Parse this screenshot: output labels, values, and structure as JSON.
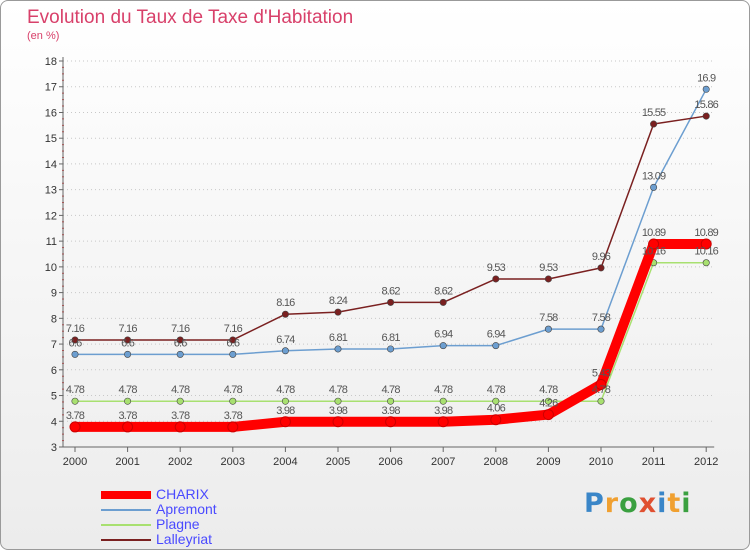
{
  "chart_data": {
    "type": "line",
    "title": "Evolution du Taux de Taxe d'Habitation",
    "subtitle": "(en %)",
    "categories": [
      "2000",
      "2001",
      "2002",
      "2003",
      "2004",
      "2005",
      "2006",
      "2007",
      "2008",
      "2009",
      "2010",
      "2011",
      "2012"
    ],
    "ylim": [
      3,
      18
    ],
    "y_ticks": [
      3,
      4,
      5,
      6,
      7,
      8,
      9,
      10,
      11,
      12,
      13,
      14,
      15,
      16,
      17,
      18
    ],
    "grid": "horizontal dotted",
    "legend_position": "bottom-left",
    "series": [
      {
        "name": "CHARIX",
        "color": "#ff0000",
        "values": [
          3.78,
          3.78,
          3.78,
          3.78,
          3.98,
          3.98,
          3.98,
          3.98,
          4.06,
          4.26,
          5.43,
          10.89,
          10.89
        ],
        "labels": [
          "3.78",
          "3.78",
          "3.78",
          "3.78",
          "3.98",
          "3.98",
          "3.98",
          "3.98",
          "4.06",
          "4.26",
          "5.43",
          "10.89",
          "10.89"
        ]
      },
      {
        "name": "Apremont",
        "color": "#6c9ed0",
        "values": [
          6.6,
          6.6,
          6.6,
          6.6,
          6.74,
          6.81,
          6.81,
          6.94,
          6.94,
          7.58,
          7.58,
          13.09,
          16.9
        ],
        "labels": [
          "6.6",
          "6.6",
          "6.6",
          "6.6",
          "6.74",
          "6.81",
          "6.81",
          "6.94",
          "6.94",
          "7.58",
          "7.58",
          "13.09",
          "16.9"
        ]
      },
      {
        "name": "Plagne",
        "color": "#a8e070",
        "values": [
          4.78,
          4.78,
          4.78,
          4.78,
          4.78,
          4.78,
          4.78,
          4.78,
          4.78,
          4.78,
          4.78,
          10.16,
          10.16
        ],
        "labels": [
          "4.78",
          "4.78",
          "4.78",
          "4.78",
          "4.78",
          "4.78",
          "4.78",
          "4.78",
          "4.78",
          "4.78",
          "4.78",
          "10.16",
          "10.16"
        ]
      },
      {
        "name": "Lalleyriat",
        "color": "#7a2020",
        "values": [
          7.16,
          7.16,
          7.16,
          7.16,
          8.16,
          8.24,
          8.62,
          8.62,
          9.53,
          9.53,
          9.96,
          15.55,
          15.86
        ],
        "labels": [
          "7.16",
          "7.16",
          "7.16",
          "7.16",
          "8.16",
          "8.24",
          "8.62",
          "8.62",
          "9.53",
          "9.53",
          "9.96",
          "15.55",
          "15.86"
        ]
      }
    ]
  },
  "logo": {
    "letters": [
      "P",
      "r",
      "o",
      "x",
      "i",
      "t",
      "i"
    ],
    "colors": [
      "#3a86c8",
      "#f0a030",
      "#3aa040",
      "#e05030",
      "#3a86c8",
      "#f0a030",
      "#3aa040"
    ]
  }
}
